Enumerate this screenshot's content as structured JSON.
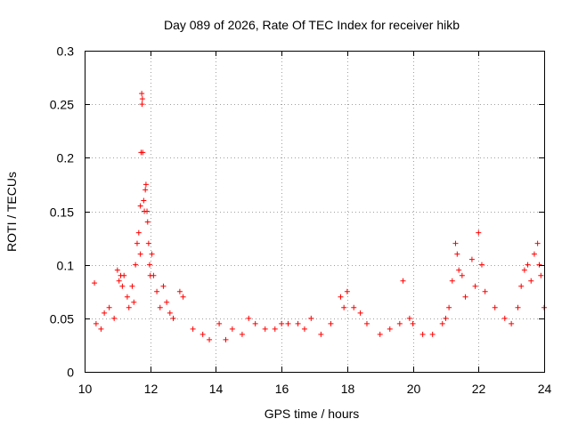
{
  "chart_data": {
    "type": "scatter",
    "title": "Day 089 of 2026, Rate Of TEC Index for receiver hikb",
    "xlabel": "GPS time / hours",
    "ylabel": "ROTI / TECUs",
    "xlim": [
      10,
      24
    ],
    "ylim": [
      0,
      0.3
    ],
    "xticks": [
      10,
      12,
      14,
      16,
      18,
      20,
      22,
      24
    ],
    "xtick_labels": [
      "10",
      "12",
      "14",
      "16",
      "18",
      "20",
      "22",
      "24"
    ],
    "yticks": [
      0,
      0.05,
      0.1,
      0.15,
      0.2,
      0.25,
      0.3
    ],
    "ytick_labels": [
      "0",
      "0.05",
      "0.1",
      "0.15",
      "0.2",
      "0.25",
      "0.3"
    ],
    "grid": true,
    "marker": "+",
    "color": "#ff0000",
    "series": [
      {
        "name": "ROTI",
        "x": [
          10.3,
          10.35,
          10.5,
          10.6,
          10.75,
          10.9,
          11.0,
          11.05,
          11.1,
          11.15,
          11.2,
          11.3,
          11.35,
          11.45,
          11.5,
          11.55,
          11.6,
          11.65,
          11.7,
          11.7,
          11.72,
          11.74,
          11.76,
          11.75,
          11.77,
          11.8,
          11.82,
          11.85,
          11.87,
          11.9,
          11.92,
          11.95,
          11.98,
          12.0,
          12.05,
          12.1,
          12.2,
          12.3,
          12.4,
          12.5,
          12.6,
          12.7,
          12.9,
          13.0,
          13.3,
          13.6,
          13.8,
          14.1,
          14.3,
          14.5,
          14.8,
          15.0,
          15.2,
          15.5,
          15.8,
          16.0,
          16.2,
          16.5,
          16.7,
          16.9,
          17.2,
          17.5,
          17.8,
          17.9,
          18.0,
          18.2,
          18.4,
          18.6,
          19.0,
          19.3,
          19.6,
          19.7,
          19.9,
          20.0,
          20.3,
          20.6,
          20.9,
          21.0,
          21.1,
          21.2,
          21.3,
          21.35,
          21.4,
          21.5,
          21.6,
          21.8,
          21.9,
          22.0,
          22.1,
          22.2,
          22.5,
          22.8,
          23.0,
          23.2,
          23.3,
          23.4,
          23.5,
          23.6,
          23.7,
          23.8,
          23.85,
          23.9,
          24.0
        ],
        "y": [
          0.083,
          0.045,
          0.04,
          0.055,
          0.06,
          0.05,
          0.095,
          0.085,
          0.09,
          0.08,
          0.09,
          0.07,
          0.06,
          0.08,
          0.065,
          0.1,
          0.12,
          0.13,
          0.11,
          0.155,
          0.205,
          0.26,
          0.255,
          0.25,
          0.205,
          0.16,
          0.15,
          0.17,
          0.175,
          0.15,
          0.14,
          0.12,
          0.1,
          0.09,
          0.11,
          0.09,
          0.075,
          0.06,
          0.08,
          0.065,
          0.055,
          0.05,
          0.075,
          0.07,
          0.04,
          0.035,
          0.03,
          0.045,
          0.03,
          0.04,
          0.035,
          0.05,
          0.045,
          0.04,
          0.04,
          0.045,
          0.045,
          0.045,
          0.04,
          0.05,
          0.035,
          0.045,
          0.07,
          0.06,
          0.075,
          0.06,
          0.055,
          0.045,
          0.035,
          0.04,
          0.045,
          0.085,
          0.05,
          0.045,
          0.035,
          0.035,
          0.045,
          0.05,
          0.06,
          0.085,
          0.12,
          0.11,
          0.095,
          0.09,
          0.07,
          0.105,
          0.08,
          0.13,
          0.1,
          0.075,
          0.06,
          0.05,
          0.045,
          0.06,
          0.08,
          0.095,
          0.1,
          0.085,
          0.11,
          0.12,
          0.1,
          0.09,
          0.06
        ]
      }
    ]
  }
}
